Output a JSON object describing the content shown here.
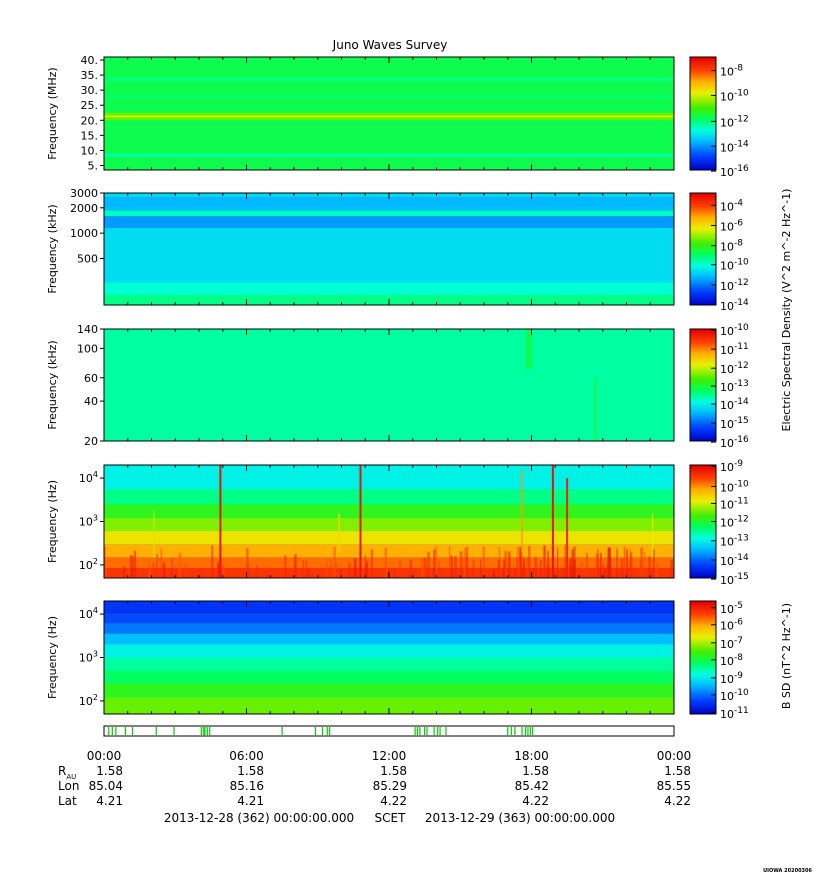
{
  "chart_data": {
    "type": "heatmap",
    "title": "Juno Waves Survey",
    "panels": [
      {
        "id": "hf-mhz",
        "ylabel": "Frequency (MHz)",
        "yscale": "linear",
        "ylim": [
          3.5,
          41
        ],
        "yticks": [
          {
            "v": 5,
            "label": "5."
          },
          {
            "v": 10,
            "label": "10."
          },
          {
            "v": 15,
            "label": "15."
          },
          {
            "v": 20,
            "label": "20."
          },
          {
            "v": 25,
            "label": "25."
          },
          {
            "v": 30,
            "label": "30."
          },
          {
            "v": 35,
            "label": "35."
          },
          {
            "v": 40,
            "label": "40."
          }
        ],
        "colorbar": {
          "ticks": [
            {
              "exp": -8,
              "frac": 0.88
            },
            {
              "exp": -10,
              "frac": 0.66
            },
            {
              "exp": -12,
              "frac": 0.43
            },
            {
              "exp": -14,
              "frac": 0.21
            },
            {
              "exp": -16,
              "frac": -0.01
            }
          ]
        },
        "bands": [
          {
            "from": 3.5,
            "to": 41,
            "level": 0.47
          },
          {
            "from": 20.0,
            "to": 22.5,
            "level": 0.58
          },
          {
            "from": 21.0,
            "to": 21.6,
            "level": 0.66
          },
          {
            "from": 7.8,
            "to": 9.0,
            "level": 0.4
          },
          {
            "from": 33.0,
            "to": 34.0,
            "level": 0.42
          },
          {
            "from": 27.5,
            "to": 28.5,
            "level": 0.44
          }
        ],
        "spikes": [],
        "burst_texture": false
      },
      {
        "id": "hf-khz",
        "ylabel": "Frequency (kHz)",
        "yscale": "log",
        "ylim": [
          140,
          3000
        ],
        "yticks": [
          {
            "v": 500,
            "label": "500"
          },
          {
            "v": 1000,
            "label": "1000"
          },
          {
            "v": 2000,
            "label": "2000"
          },
          {
            "v": 3000,
            "label": "3000"
          }
        ],
        "colorbar": {
          "ticks": [
            {
              "exp": -4,
              "frac": 0.89
            },
            {
              "exp": -6,
              "frac": 0.71
            },
            {
              "exp": -8,
              "frac": 0.53
            },
            {
              "exp": -10,
              "frac": 0.36
            },
            {
              "exp": -12,
              "frac": 0.18
            },
            {
              "exp": -14,
              "frac": 0.0
            }
          ]
        },
        "bands": [
          {
            "from": 140,
            "to": 3000,
            "level": 0.3
          },
          {
            "from": 140,
            "to": 185,
            "level": 0.42
          },
          {
            "from": 185,
            "to": 260,
            "level": 0.36
          },
          {
            "from": 1150,
            "to": 1600,
            "level": 0.22
          },
          {
            "from": 1600,
            "to": 1850,
            "level": 0.38
          },
          {
            "from": 1850,
            "to": 2100,
            "level": 0.26
          },
          {
            "from": 2100,
            "to": 2700,
            "level": 0.25
          }
        ],
        "spikes": [],
        "burst_texture": false
      },
      {
        "id": "lf-khz",
        "ylabel": "Frequency (kHz)",
        "yscale": "log",
        "ylim": [
          20,
          140
        ],
        "yticks": [
          {
            "v": 20,
            "label": "20"
          },
          {
            "v": 40,
            "label": "40"
          },
          {
            "v": 60,
            "label": "60"
          },
          {
            "v": 100,
            "label": "100"
          },
          {
            "v": 140,
            "label": "140"
          }
        ],
        "colorbar": {
          "ticks": [
            {
              "exp": -10,
              "frac": 0.99
            },
            {
              "exp": -11,
              "frac": 0.82
            },
            {
              "exp": -12,
              "frac": 0.65
            },
            {
              "exp": -13,
              "frac": 0.49
            },
            {
              "exp": -14,
              "frac": 0.33
            },
            {
              "exp": -15,
              "frac": 0.16
            },
            {
              "exp": -16,
              "frac": -0.01
            }
          ]
        },
        "bands": [
          {
            "from": 20,
            "to": 140,
            "level": 0.4
          }
        ],
        "spikes": [
          {
            "t": 17.9,
            "fmin": 70,
            "fmax": 140,
            "level": 0.47,
            "width": 6
          },
          {
            "t": 20.7,
            "fmin": 20,
            "fmax": 60,
            "level": 0.5,
            "width": 1.5
          }
        ],
        "burst_texture": false
      },
      {
        "id": "e-hz",
        "ylabel": "Frequency (Hz)",
        "yscale": "log",
        "ylim": [
          50,
          20000
        ],
        "yticks": [
          {
            "v": 100,
            "label": "10^2"
          },
          {
            "v": 1000,
            "label": "10^3"
          },
          {
            "v": 10000,
            "label": "10^4"
          }
        ],
        "colorbar": {
          "ticks": [
            {
              "exp": -9,
              "frac": 0.99
            },
            {
              "exp": -10,
              "frac": 0.81
            },
            {
              "exp": -11,
              "frac": 0.66
            },
            {
              "exp": -12,
              "frac": 0.5
            },
            {
              "exp": -13,
              "frac": 0.33
            },
            {
              "exp": -14,
              "frac": 0.16
            },
            {
              "exp": -15,
              "frac": -0.01
            }
          ]
        },
        "bands": [
          {
            "from": 50,
            "to": 20000,
            "level": 0.3
          },
          {
            "from": 5500,
            "to": 20000,
            "level": 0.33
          },
          {
            "from": 2500,
            "to": 5500,
            "level": 0.42
          },
          {
            "from": 1200,
            "to": 2500,
            "level": 0.52
          },
          {
            "from": 600,
            "to": 1200,
            "level": 0.6
          },
          {
            "from": 300,
            "to": 600,
            "level": 0.7
          },
          {
            "from": 150,
            "to": 300,
            "level": 0.78
          },
          {
            "from": 85,
            "to": 150,
            "level": 0.84
          },
          {
            "from": 50,
            "to": 85,
            "level": 0.9
          }
        ],
        "spikes": [
          {
            "t": 4.9,
            "fmin": 50,
            "fmax": 20000,
            "level": 0.96,
            "width": 2
          },
          {
            "t": 10.8,
            "fmin": 50,
            "fmax": 20000,
            "level": 0.96,
            "width": 2
          },
          {
            "t": 9.9,
            "fmin": 200,
            "fmax": 1500,
            "level": 0.72,
            "width": 1.5
          },
          {
            "t": 17.6,
            "fmin": 200,
            "fmax": 15000,
            "level": 0.8,
            "width": 1.5
          },
          {
            "t": 18.9,
            "fmin": 50,
            "fmax": 20000,
            "level": 0.96,
            "width": 2
          },
          {
            "t": 19.5,
            "fmin": 50,
            "fmax": 10000,
            "level": 0.93,
            "width": 2
          },
          {
            "t": 2.1,
            "fmin": 150,
            "fmax": 1800,
            "level": 0.65,
            "width": 1
          },
          {
            "t": 23.1,
            "fmin": 150,
            "fmax": 1500,
            "level": 0.68,
            "width": 1
          }
        ],
        "burst_texture": true
      },
      {
        "id": "b-hz",
        "ylabel": "Frequency (Hz)",
        "yscale": "log",
        "ylim": [
          50,
          20000
        ],
        "yticks": [
          {
            "v": 100,
            "label": "10^2"
          },
          {
            "v": 1000,
            "label": "10^3"
          },
          {
            "v": 10000,
            "label": "10^4"
          }
        ],
        "colorbar": {
          "ticks": [
            {
              "exp": -5,
              "frac": 0.94
            },
            {
              "exp": -6,
              "frac": 0.79
            },
            {
              "exp": -7,
              "frac": 0.63
            },
            {
              "exp": -8,
              "frac": 0.48
            },
            {
              "exp": -9,
              "frac": 0.32
            },
            {
              "exp": -10,
              "frac": 0.17
            },
            {
              "exp": -11,
              "frac": 0.01
            }
          ]
        },
        "bands": [
          {
            "from": 50,
            "to": 20000,
            "level": 0.35
          },
          {
            "from": 10000,
            "to": 20000,
            "level": 0.1
          },
          {
            "from": 6000,
            "to": 10000,
            "level": 0.13
          },
          {
            "from": 3500,
            "to": 6000,
            "level": 0.18
          },
          {
            "from": 2000,
            "to": 3500,
            "level": 0.26
          },
          {
            "from": 1000,
            "to": 2000,
            "level": 0.33
          },
          {
            "from": 500,
            "to": 1000,
            "level": 0.4
          },
          {
            "from": 250,
            "to": 500,
            "level": 0.45
          },
          {
            "from": 120,
            "to": 250,
            "level": 0.52
          },
          {
            "from": 50,
            "to": 120,
            "level": 0.58
          }
        ],
        "spikes": [],
        "burst_texture": false
      }
    ],
    "colorbar_labels": {
      "electric": "Electric Spectral Density (V^2 m^-2 Hz^-1)",
      "magnetic": "B SD (nT^2 Hz^-1)"
    },
    "mode_bar": {
      "ticks_hours": [
        0.2,
        0.35,
        0.5,
        0.9,
        1.2,
        2.2,
        2.95,
        4.1,
        4.2,
        4.25,
        4.35,
        4.45,
        7.5,
        8.9,
        9.2,
        9.4,
        9.5,
        13.1,
        13.2,
        13.3,
        13.5,
        13.6,
        13.9,
        14.05,
        14.15,
        14.4,
        17.0,
        17.15,
        17.3,
        17.6,
        17.75,
        17.85,
        17.95,
        18.05
      ]
    },
    "xaxis": {
      "range_hours": [
        0,
        24
      ],
      "ticks": [
        {
          "h": 0,
          "label": "00:00"
        },
        {
          "h": 6,
          "label": "06:00"
        },
        {
          "h": 12,
          "label": "12:00"
        },
        {
          "h": 18,
          "label": "18:00"
        },
        {
          "h": 24,
          "label": "00:00"
        }
      ]
    },
    "ephemeris": {
      "rows": [
        {
          "label": "R",
          "sub": "AU",
          "values": [
            "1.58",
            "1.58",
            "1.58",
            "1.58",
            "1.58"
          ]
        },
        {
          "label": "Lon",
          "sub": "",
          "values": [
            "85.04",
            "85.16",
            "85.29",
            "85.42",
            "85.55"
          ]
        },
        {
          "label": "Lat",
          "sub": "",
          "values": [
            "4.21",
            "4.21",
            "4.22",
            "4.22",
            "4.22"
          ]
        }
      ]
    },
    "footer": {
      "start": "2013-12-28 (362) 00:00:00.000",
      "scet": "SCET",
      "end": "2013-12-29 (363) 00:00:00.000"
    },
    "credit": "UIOWA 20200306"
  }
}
